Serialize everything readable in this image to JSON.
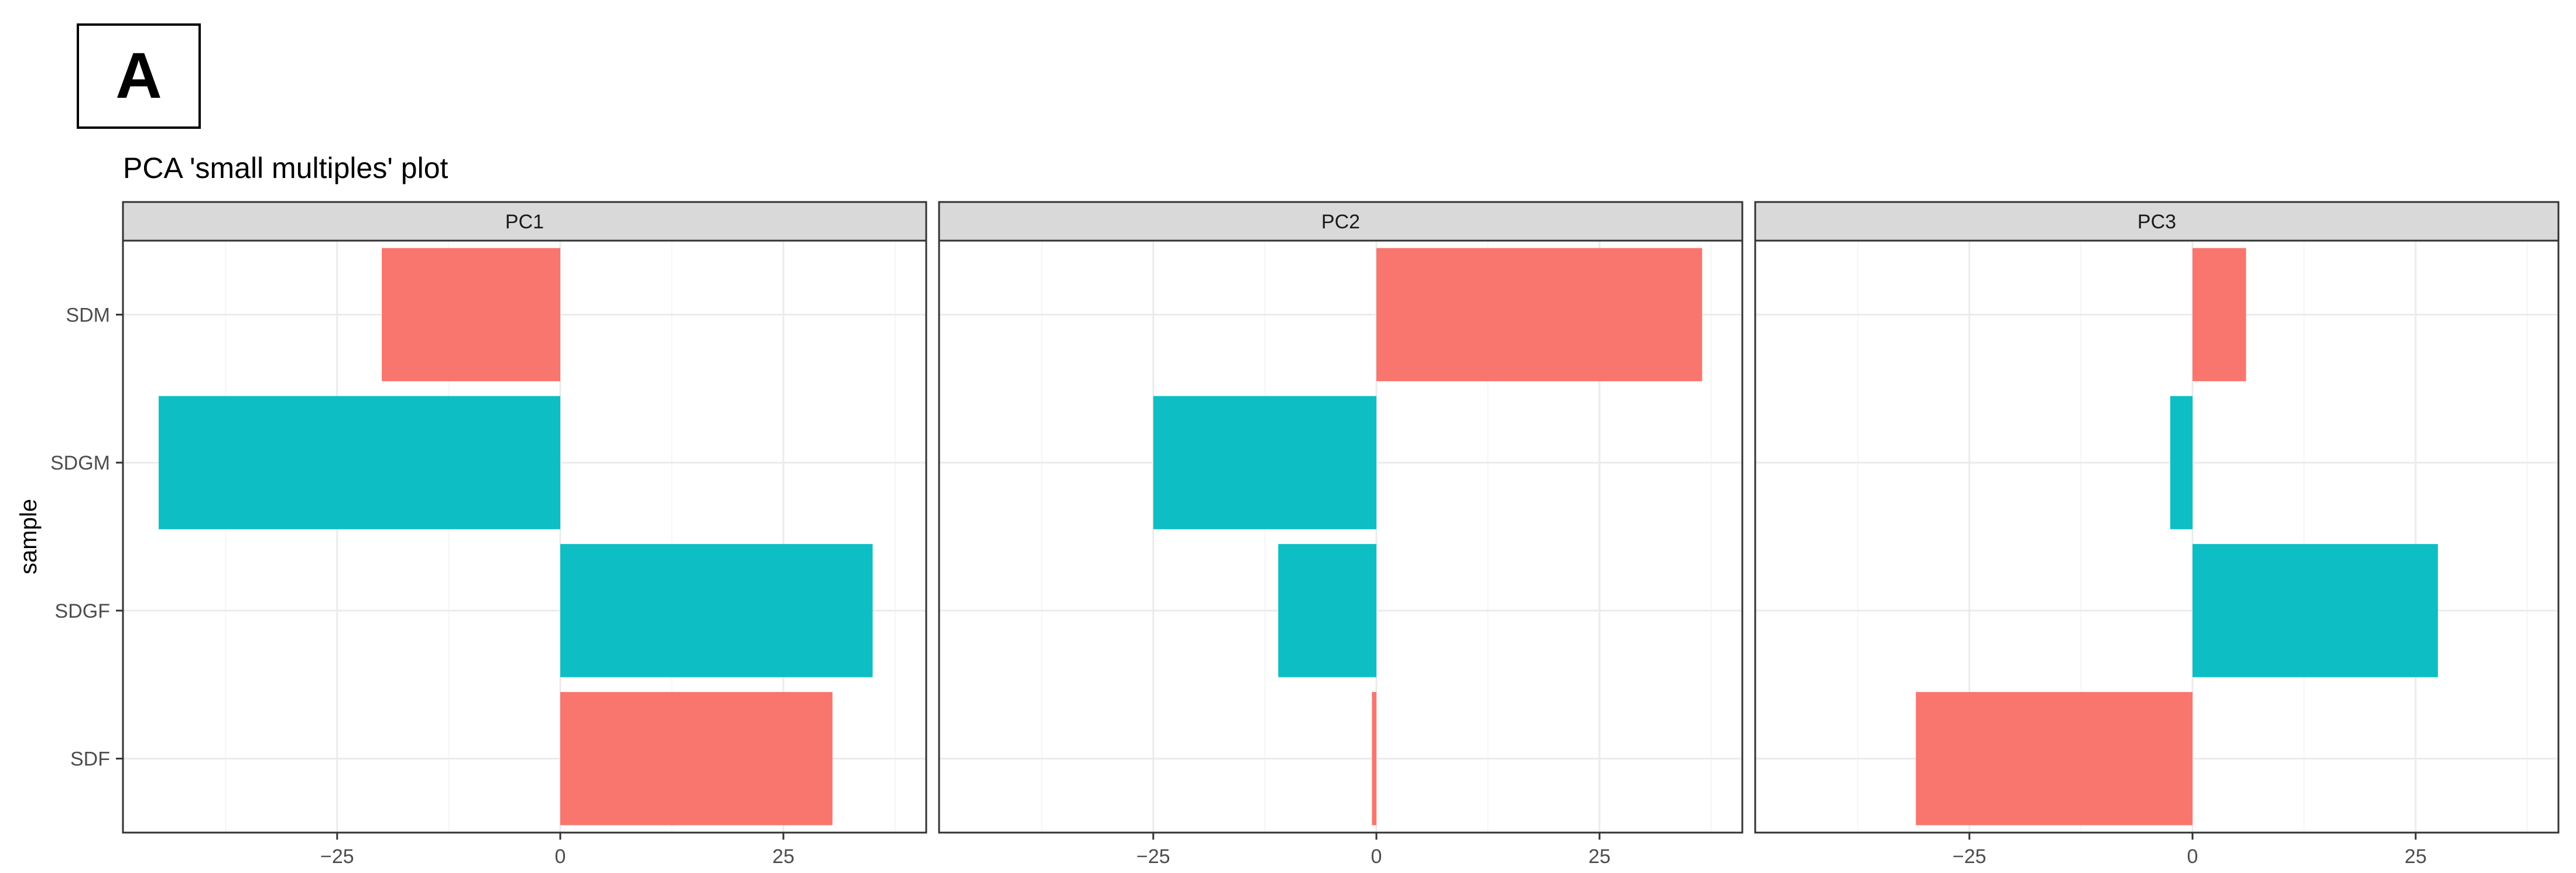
{
  "panel_label": "A",
  "title": "PCA 'small multiples' plot",
  "colors": {
    "coral": "#F8766D",
    "teal": "#0DBFC4",
    "strip_fill": "#D9D9D9",
    "grid_major": "#EBEBEB",
    "grid_minor": "#F5F5F5",
    "border": "#333333",
    "tick_text": "#4D4D4D"
  },
  "chart_data": {
    "type": "bar",
    "orientation": "horizontal",
    "facet_by": "principal component",
    "ylabel": "sample",
    "xlabel": "",
    "categories": [
      "SDM",
      "SDGM",
      "SDGF",
      "SDF"
    ],
    "xlim": [
      -49,
      41
    ],
    "x_ticks": [
      -25,
      0,
      25
    ],
    "x_tick_labels": [
      "−25",
      "0",
      "25"
    ],
    "grid": true,
    "legend": "none",
    "bar_colors": [
      "#F8766D",
      "#0DBFC4",
      "#0DBFC4",
      "#F8766D"
    ],
    "facets": [
      {
        "name": "PC1",
        "values": [
          -20.0,
          -45.0,
          35.0,
          30.5
        ]
      },
      {
        "name": "PC2",
        "values": [
          36.5,
          -25.0,
          -11.0,
          -0.5
        ]
      },
      {
        "name": "PC3",
        "values": [
          6.0,
          -2.5,
          27.5,
          -31.0
        ]
      }
    ]
  }
}
